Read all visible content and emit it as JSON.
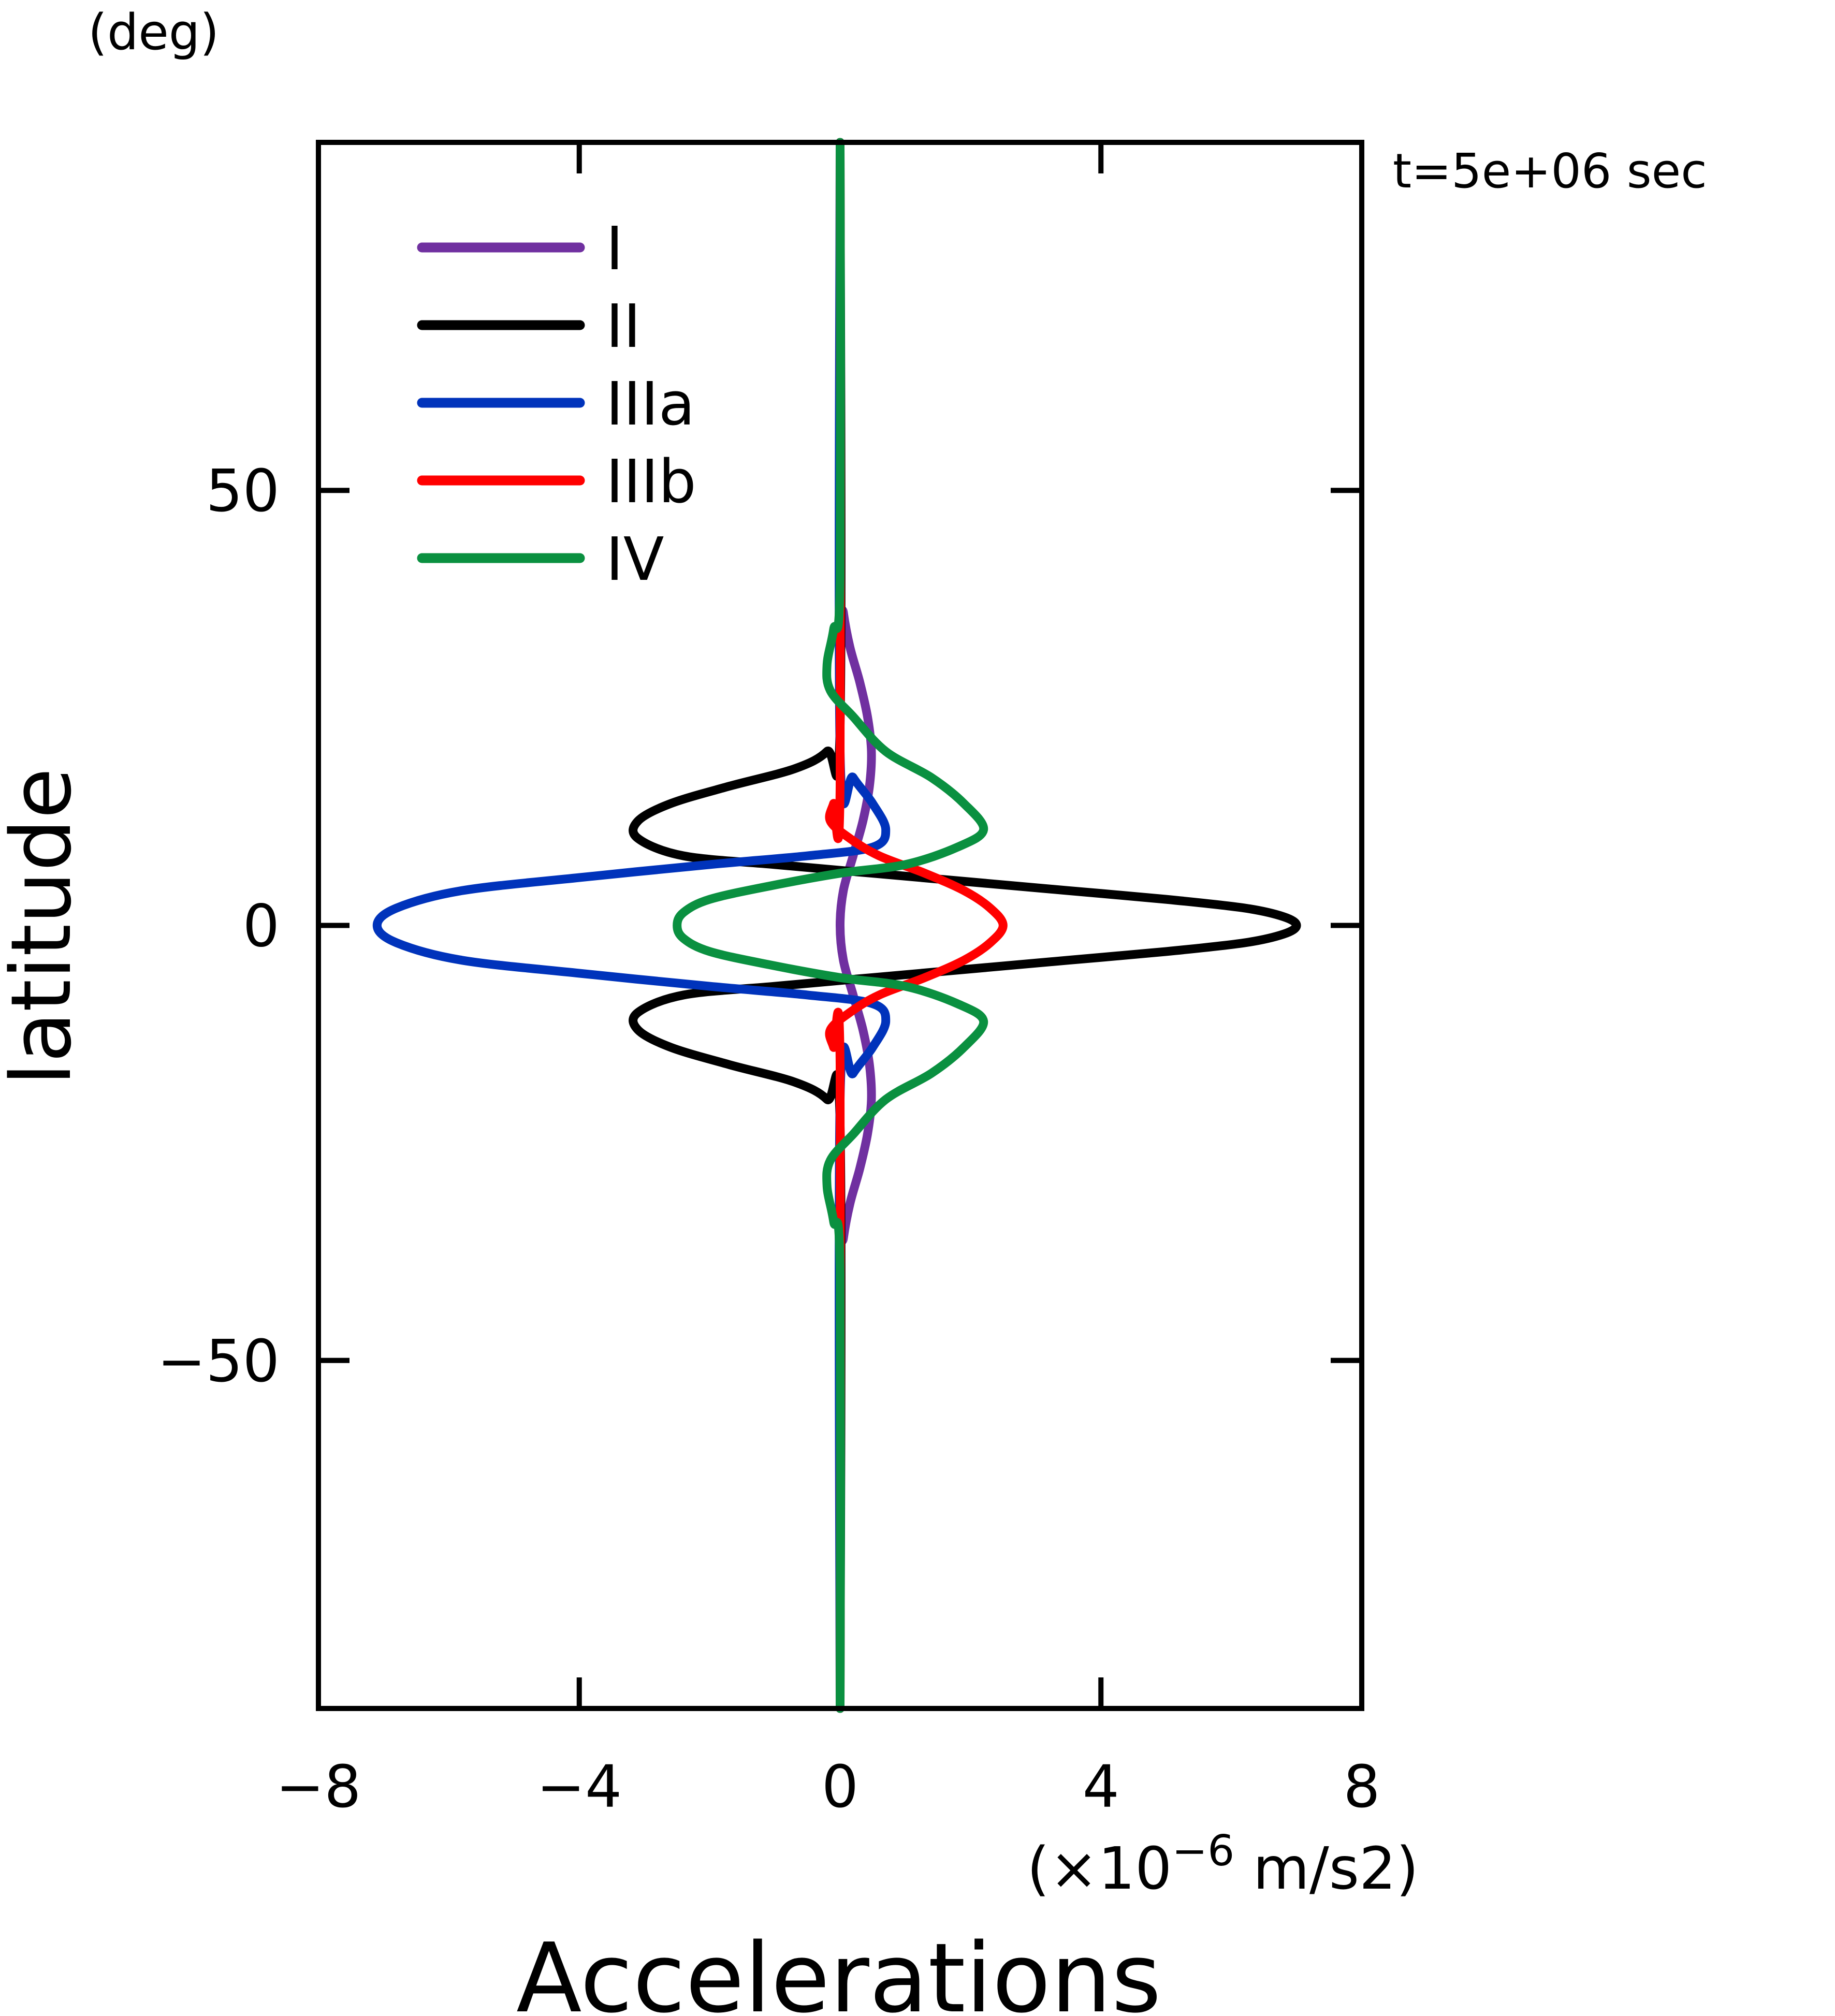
{
  "chart_data": {
    "type": "line",
    "orientation": "x-value, y-latitude",
    "title": "",
    "annotation": "t=5e+06 sec",
    "xlabel": "Accelerations",
    "xunit_prefix": "(×10",
    "xunit_exp": "−6",
    "xunit_suffix": " m/s2)",
    "ylabel": "latitude",
    "yunit": "(deg)",
    "xlim": [
      -8,
      8
    ],
    "ylim": [
      -90,
      90
    ],
    "xticks": [
      {
        "v": -8,
        "label": "−8"
      },
      {
        "v": -4,
        "label": "−4"
      },
      {
        "v": 0,
        "label": "0"
      },
      {
        "v": 4,
        "label": "4"
      },
      {
        "v": 8,
        "label": "8"
      }
    ],
    "yticks": [
      {
        "v": 50,
        "label": "50"
      },
      {
        "v": 0,
        "label": "0"
      },
      {
        "v": -50,
        "label": "−50"
      }
    ],
    "legend_position": "top-left",
    "grid": false,
    "series": [
      {
        "name": "I",
        "color": "#7030a0",
        "points": [
          [
            0,
            90
          ],
          [
            0,
            40
          ],
          [
            0.05,
            36
          ],
          [
            0.15,
            32
          ],
          [
            0.3,
            28
          ],
          [
            0.42,
            24
          ],
          [
            0.48,
            20
          ],
          [
            0.45,
            16
          ],
          [
            0.35,
            12
          ],
          [
            0.2,
            8
          ],
          [
            0.05,
            4
          ],
          [
            0,
            0
          ],
          [
            0.05,
            -4
          ],
          [
            0.2,
            -8
          ],
          [
            0.35,
            -12
          ],
          [
            0.45,
            -16
          ],
          [
            0.48,
            -20
          ],
          [
            0.42,
            -24
          ],
          [
            0.3,
            -28
          ],
          [
            0.15,
            -32
          ],
          [
            0.05,
            -36
          ],
          [
            0,
            -40
          ],
          [
            0,
            -90
          ]
        ]
      },
      {
        "name": "II",
        "color": "#000000",
        "points": [
          [
            0,
            90
          ],
          [
            0,
            23
          ],
          [
            -0.2,
            20
          ],
          [
            -0.7,
            18
          ],
          [
            -1.7,
            16
          ],
          [
            -2.6,
            14
          ],
          [
            -3.1,
            12
          ],
          [
            -3.1,
            10
          ],
          [
            -2.4,
            8
          ],
          [
            -1,
            7
          ],
          [
            0.5,
            6
          ],
          [
            2,
            5
          ],
          [
            3.5,
            4
          ],
          [
            5,
            3
          ],
          [
            6.2,
            2
          ],
          [
            6.8,
            1
          ],
          [
            7,
            0
          ],
          [
            6.8,
            -1
          ],
          [
            6.2,
            -2
          ],
          [
            5,
            -3
          ],
          [
            3.5,
            -4
          ],
          [
            2,
            -5
          ],
          [
            0.5,
            -6
          ],
          [
            -1,
            -7
          ],
          [
            -2.4,
            -8
          ],
          [
            -3.1,
            -10
          ],
          [
            -3.1,
            -12
          ],
          [
            -2.6,
            -14
          ],
          [
            -1.7,
            -16
          ],
          [
            -0.7,
            -18
          ],
          [
            -0.2,
            -20
          ],
          [
            0,
            -23
          ],
          [
            0,
            -90
          ]
        ]
      },
      {
        "name": "IIIa",
        "color": "#0033bb",
        "points": [
          [
            0,
            90
          ],
          [
            0,
            20
          ],
          [
            0.2,
            17
          ],
          [
            0.5,
            14
          ],
          [
            0.7,
            11
          ],
          [
            0.5,
            9
          ],
          [
            -0.5,
            8
          ],
          [
            -2,
            7
          ],
          [
            -4,
            5.5
          ],
          [
            -5.8,
            4
          ],
          [
            -6.8,
            2
          ],
          [
            -7.1,
            0
          ],
          [
            -6.8,
            -2
          ],
          [
            -5.8,
            -4
          ],
          [
            -4,
            -5.5
          ],
          [
            -2,
            -7
          ],
          [
            -0.5,
            -8
          ],
          [
            0.5,
            -9
          ],
          [
            0.7,
            -11
          ],
          [
            0.5,
            -14
          ],
          [
            0.2,
            -17
          ],
          [
            0,
            -20
          ],
          [
            0,
            -90
          ]
        ]
      },
      {
        "name": "IIIb",
        "color": "#ff0000",
        "points": [
          [
            0,
            90
          ],
          [
            0,
            16
          ],
          [
            -0.1,
            14
          ],
          [
            -0.15,
            12
          ],
          [
            0.15,
            10
          ],
          [
            0.6,
            8
          ],
          [
            1.3,
            6
          ],
          [
            1.9,
            4
          ],
          [
            2.3,
            2
          ],
          [
            2.5,
            0
          ],
          [
            2.3,
            -2
          ],
          [
            1.9,
            -4
          ],
          [
            1.3,
            -6
          ],
          [
            0.6,
            -8
          ],
          [
            0.15,
            -10
          ],
          [
            -0.15,
            -12
          ],
          [
            -0.1,
            -14
          ],
          [
            0,
            -16
          ],
          [
            0,
            -90
          ]
        ]
      },
      {
        "name": "IV",
        "color": "#0a9040",
        "points": [
          [
            0,
            90
          ],
          [
            0,
            40
          ],
          [
            -0.1,
            34
          ],
          [
            -0.2,
            30
          ],
          [
            -0.15,
            27
          ],
          [
            0.2,
            24
          ],
          [
            0.7,
            20
          ],
          [
            1.4,
            17
          ],
          [
            1.9,
            14
          ],
          [
            2.2,
            11
          ],
          [
            1.8,
            9
          ],
          [
            1,
            7
          ],
          [
            0,
            6
          ],
          [
            -1.1,
            4.5
          ],
          [
            -2,
            3
          ],
          [
            -2.4,
            1.5
          ],
          [
            -2.5,
            0
          ],
          [
            -2.4,
            -1.5
          ],
          [
            -2,
            -3
          ],
          [
            -1.1,
            -4.5
          ],
          [
            0,
            -6
          ],
          [
            1,
            -7
          ],
          [
            1.8,
            -9
          ],
          [
            2.2,
            -11
          ],
          [
            1.9,
            -14
          ],
          [
            1.4,
            -17
          ],
          [
            0.7,
            -20
          ],
          [
            0.2,
            -24
          ],
          [
            -0.15,
            -27
          ],
          [
            -0.2,
            -30
          ],
          [
            -0.1,
            -34
          ],
          [
            0,
            -40
          ],
          [
            0,
            -90
          ]
        ]
      }
    ]
  }
}
